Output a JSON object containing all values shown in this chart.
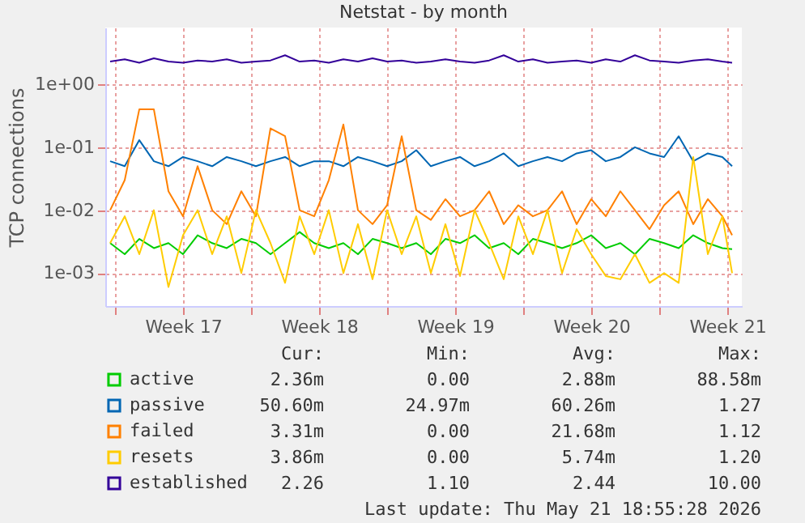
{
  "chart_data": {
    "type": "line",
    "title": "Netstat - by month",
    "ylabel": "TCP connections",
    "log": "y",
    "grid": true,
    "legend": "bottom",
    "marker": "none",
    "line_style": "solid",
    "x": [
      "2026-04-19T18:00",
      "2026-04-20T12:00",
      "2026-04-21T06:00",
      "2026-04-22T00:00",
      "2026-04-22T18:00",
      "2026-04-23T12:00",
      "2026-04-24T06:00",
      "2026-04-25T00:00",
      "2026-04-25T18:00",
      "2026-04-26T12:00",
      "2026-04-27T06:00",
      "2026-04-28T00:00",
      "2026-04-28T18:00",
      "2026-04-29T12:00",
      "2026-04-30T06:00",
      "2026-05-01T00:00",
      "2026-05-01T18:00",
      "2026-05-02T12:00",
      "2026-05-03T06:00",
      "2026-05-04T00:00",
      "2026-05-04T18:00",
      "2026-05-05T12:00",
      "2026-05-06T06:00",
      "2026-05-07T00:00",
      "2026-05-07T18:00",
      "2026-05-08T12:00",
      "2026-05-09T06:00",
      "2026-05-10T00:00",
      "2026-05-10T18:00",
      "2026-05-11T12:00",
      "2026-05-12T06:00",
      "2026-05-13T00:00",
      "2026-05-13T18:00",
      "2026-05-14T12:00",
      "2026-05-15T06:00",
      "2026-05-16T00:00",
      "2026-05-16T18:00",
      "2026-05-17T12:00",
      "2026-05-18T06:00",
      "2026-05-19T00:00",
      "2026-05-19T18:00",
      "2026-05-20T12:00",
      "2026-05-21T06:00",
      "2026-05-21T18:00"
    ],
    "xlim": [
      "2026-04-19T12:00",
      "2026-05-22T06:00"
    ],
    "xticks": [
      {
        "value": "2026-04-20",
        "label": null
      },
      {
        "value": "2026-04-23T12:00",
        "label": "Week 17"
      },
      {
        "value": "2026-04-27",
        "label": null
      },
      {
        "value": "2026-04-30T12:00",
        "label": "Week 18"
      },
      {
        "value": "2026-05-04",
        "label": null
      },
      {
        "value": "2026-05-07T12:00",
        "label": "Week 19"
      },
      {
        "value": "2026-05-11",
        "label": null
      },
      {
        "value": "2026-05-14T12:00",
        "label": "Week 20"
      },
      {
        "value": "2026-05-18",
        "label": null
      },
      {
        "value": "2026-05-21T12:00",
        "label": "Week 21"
      }
    ],
    "ylim": [
      0.0003,
      8
    ],
    "yticks": [
      {
        "value": 0.001,
        "label": "1e-03"
      },
      {
        "value": 0.01,
        "label": "1e-02"
      },
      {
        "value": 0.1,
        "label": "1e-01"
      },
      {
        "value": 1,
        "label": "1e+00"
      }
    ],
    "series": [
      {
        "name": "active",
        "color": "#00cc00",
        "values": [
          0.003,
          0.002,
          0.0035,
          0.0025,
          0.003,
          0.002,
          0.004,
          0.003,
          0.0025,
          0.0035,
          0.003,
          0.002,
          0.003,
          0.0045,
          0.003,
          0.0025,
          0.003,
          0.002,
          0.0035,
          0.003,
          0.0025,
          0.003,
          0.002,
          0.0035,
          0.003,
          0.004,
          0.0025,
          0.003,
          0.002,
          0.0035,
          0.003,
          0.0025,
          0.003,
          0.004,
          0.0025,
          0.003,
          0.002,
          0.0035,
          0.003,
          0.0025,
          0.004,
          0.003,
          0.0025,
          0.0024
        ]
      },
      {
        "name": "passive",
        "color": "#0066b3",
        "values": [
          0.06,
          0.05,
          0.13,
          0.06,
          0.05,
          0.07,
          0.06,
          0.05,
          0.07,
          0.06,
          0.05,
          0.06,
          0.07,
          0.05,
          0.06,
          0.06,
          0.05,
          0.07,
          0.06,
          0.05,
          0.06,
          0.09,
          0.05,
          0.06,
          0.07,
          0.05,
          0.06,
          0.08,
          0.05,
          0.06,
          0.07,
          0.06,
          0.08,
          0.09,
          0.06,
          0.07,
          0.1,
          0.08,
          0.07,
          0.15,
          0.06,
          0.08,
          0.07,
          0.05
        ]
      },
      {
        "name": "failed",
        "color": "#ff8000",
        "values": [
          0.01,
          0.03,
          0.4,
          0.4,
          0.02,
          0.008,
          0.05,
          0.01,
          0.006,
          0.02,
          0.008,
          0.2,
          0.15,
          0.01,
          0.008,
          0.03,
          0.23,
          0.01,
          0.006,
          0.012,
          0.15,
          0.01,
          0.007,
          0.015,
          0.008,
          0.01,
          0.02,
          0.006,
          0.012,
          0.008,
          0.01,
          0.02,
          0.006,
          0.015,
          0.008,
          0.02,
          0.01,
          0.005,
          0.012,
          0.02,
          0.006,
          0.015,
          0.008,
          0.004
        ]
      },
      {
        "name": "resets",
        "color": "#ffcc00",
        "values": [
          0.003,
          0.008,
          0.002,
          0.01,
          0.0006,
          0.004,
          0.01,
          0.002,
          0.008,
          0.001,
          0.01,
          0.003,
          0.0007,
          0.008,
          0.002,
          0.01,
          0.001,
          0.006,
          0.0008,
          0.01,
          0.002,
          0.008,
          0.001,
          0.006,
          0.0009,
          0.01,
          0.003,
          0.0008,
          0.008,
          0.002,
          0.01,
          0.001,
          0.005,
          0.002,
          0.0009,
          0.0008,
          0.002,
          0.0007,
          0.001,
          0.0007,
          0.07,
          0.002,
          0.008,
          0.001
        ]
      },
      {
        "name": "established",
        "color": "#330099",
        "values": [
          2.3,
          2.5,
          2.2,
          2.6,
          2.3,
          2.2,
          2.4,
          2.3,
          2.5,
          2.2,
          2.3,
          2.4,
          2.9,
          2.3,
          2.4,
          2.2,
          2.5,
          2.3,
          2.6,
          2.3,
          2.4,
          2.2,
          2.3,
          2.5,
          2.3,
          2.2,
          2.4,
          2.9,
          2.3,
          2.5,
          2.2,
          2.3,
          2.4,
          2.2,
          2.5,
          2.3,
          2.9,
          2.4,
          2.3,
          2.2,
          2.4,
          2.5,
          2.3,
          2.2
        ]
      }
    ],
    "annotations": [
      "Cur:",
      "Min:",
      "Avg:",
      "Max:",
      "2.36m",
      "0.00",
      "2.88m",
      "88.58m",
      "50.60m",
      "24.97m",
      "60.26m",
      "1.27",
      "3.31m",
      "0.00",
      "21.68m",
      "1.12",
      "3.86m",
      "0.00",
      "5.74m",
      "1.20",
      "2.26",
      "1.10",
      "2.44",
      "10.00",
      "Last update: Thu May 21 18:55:28 2026"
    ]
  }
}
